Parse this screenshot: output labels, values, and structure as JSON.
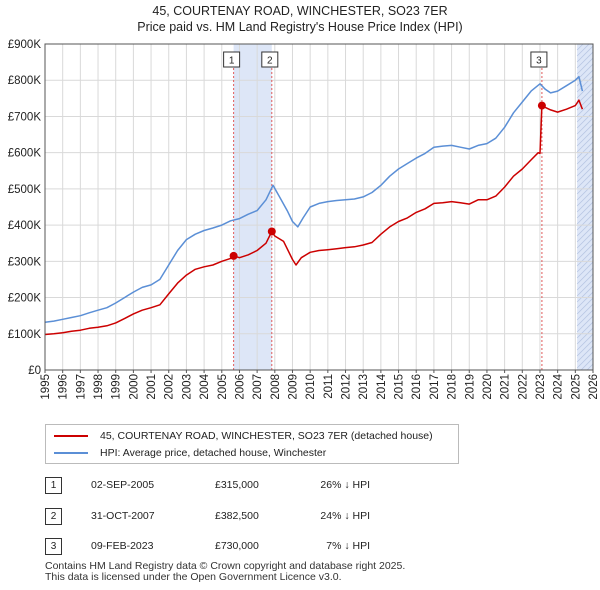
{
  "title": {
    "line1": "45, COURTENAY ROAD, WINCHESTER, SO23 7ER",
    "line2": "Price paid vs. HM Land Registry's House Price Index (HPI)"
  },
  "colors": {
    "property": "#cc0000",
    "hpi": "#5b8fd6",
    "shade": "#dde6f7",
    "marker_line": "#e05a5a",
    "grid": "#d9d9d9"
  },
  "chart_data": {
    "type": "line",
    "title": "Price paid vs. HM Land Registry's House Price Index (HPI)",
    "xlabel": "",
    "ylabel": "",
    "xlim": [
      1995,
      2026
    ],
    "ylim": [
      0,
      900000
    ],
    "x_ticks": [
      "1995",
      "1996",
      "1997",
      "1998",
      "1999",
      "2000",
      "2001",
      "2002",
      "2003",
      "2004",
      "2005",
      "2006",
      "2007",
      "2008",
      "2009",
      "2010",
      "2011",
      "2012",
      "2013",
      "2014",
      "2015",
      "2016",
      "2017",
      "2018",
      "2019",
      "2020",
      "2021",
      "2022",
      "2023",
      "2024",
      "2025",
      "2026"
    ],
    "y_ticks": [
      {
        "value": 0,
        "label": "£0"
      },
      {
        "value": 100000,
        "label": "£100K"
      },
      {
        "value": 200000,
        "label": "£200K"
      },
      {
        "value": 300000,
        "label": "£300K"
      },
      {
        "value": 400000,
        "label": "£400K"
      },
      {
        "value": 500000,
        "label": "£500K"
      },
      {
        "value": 600000,
        "label": "£600K"
      },
      {
        "value": 700000,
        "label": "£700K"
      },
      {
        "value": 800000,
        "label": "£800K"
      },
      {
        "value": 900000,
        "label": "£900K"
      }
    ],
    "shaded_spans": [
      [
        2005.67,
        2007.83
      ],
      [
        2025.1,
        2026
      ]
    ],
    "series": [
      {
        "name": "45, COURTENAY ROAD, WINCHESTER, SO23 7ER (detached house)",
        "color": "#cc0000",
        "x": [
          1995.0,
          1995.5,
          1996.0,
          1996.5,
          1997.0,
          1997.5,
          1998.0,
          1998.5,
          1999.0,
          1999.5,
          2000.0,
          2000.5,
          2001.0,
          2001.5,
          2002.0,
          2002.5,
          2003.0,
          2003.5,
          2004.0,
          2004.5,
          2005.0,
          2005.5,
          2005.67,
          2006.0,
          2006.5,
          2007.0,
          2007.5,
          2007.83,
          2008.0,
          2008.5,
          2009.0,
          2009.2,
          2009.5,
          2010.0,
          2010.5,
          2011.0,
          2011.5,
          2012.0,
          2012.5,
          2013.0,
          2013.5,
          2014.0,
          2014.5,
          2015.0,
          2015.5,
          2016.0,
          2016.5,
          2017.0,
          2017.5,
          2018.0,
          2018.5,
          2019.0,
          2019.5,
          2020.0,
          2020.5,
          2021.0,
          2021.5,
          2022.0,
          2022.5,
          2022.9,
          2023.0,
          2023.11,
          2023.3,
          2023.6,
          2024.0,
          2024.5,
          2025.0,
          2025.2,
          2025.4
        ],
        "values": [
          98000,
          100000,
          103000,
          107000,
          110000,
          115000,
          118000,
          122000,
          130000,
          142000,
          155000,
          165000,
          172000,
          180000,
          210000,
          240000,
          262000,
          278000,
          285000,
          290000,
          300000,
          308000,
          315000,
          310000,
          318000,
          330000,
          350000,
          382500,
          370000,
          355000,
          305000,
          290000,
          310000,
          325000,
          330000,
          332000,
          335000,
          338000,
          340000,
          345000,
          352000,
          375000,
          395000,
          410000,
          420000,
          435000,
          445000,
          460000,
          462000,
          465000,
          462000,
          458000,
          470000,
          470000,
          480000,
          505000,
          535000,
          555000,
          580000,
          600000,
          598000,
          730000,
          725000,
          718000,
          712000,
          720000,
          730000,
          745000,
          720000
        ]
      },
      {
        "name": "HPI: Average price, detached house, Winchester",
        "color": "#5b8fd6",
        "x": [
          1995.0,
          1995.5,
          1996.0,
          1996.5,
          1997.0,
          1997.5,
          1998.0,
          1998.5,
          1999.0,
          1999.5,
          2000.0,
          2000.5,
          2001.0,
          2001.5,
          2002.0,
          2002.5,
          2003.0,
          2003.5,
          2004.0,
          2004.5,
          2005.0,
          2005.5,
          2006.0,
          2006.5,
          2007.0,
          2007.5,
          2007.9,
          2008.3,
          2008.7,
          2009.0,
          2009.3,
          2009.6,
          2010.0,
          2010.5,
          2011.0,
          2011.5,
          2012.0,
          2012.5,
          2013.0,
          2013.5,
          2014.0,
          2014.5,
          2015.0,
          2015.5,
          2016.0,
          2016.5,
          2017.0,
          2017.5,
          2018.0,
          2018.5,
          2019.0,
          2019.5,
          2020.0,
          2020.5,
          2021.0,
          2021.5,
          2022.0,
          2022.5,
          2023.0,
          2023.3,
          2023.6,
          2024.0,
          2024.5,
          2025.0,
          2025.2,
          2025.4
        ],
        "values": [
          132000,
          135000,
          140000,
          145000,
          150000,
          158000,
          165000,
          172000,
          185000,
          200000,
          215000,
          228000,
          235000,
          250000,
          290000,
          330000,
          360000,
          375000,
          385000,
          392000,
          400000,
          412000,
          418000,
          430000,
          440000,
          470000,
          510000,
          475000,
          440000,
          410000,
          395000,
          420000,
          450000,
          460000,
          465000,
          468000,
          470000,
          472000,
          478000,
          490000,
          510000,
          535000,
          555000,
          570000,
          585000,
          598000,
          615000,
          618000,
          620000,
          615000,
          610000,
          620000,
          625000,
          640000,
          670000,
          710000,
          740000,
          770000,
          790000,
          775000,
          765000,
          770000,
          785000,
          800000,
          810000,
          770000
        ]
      }
    ],
    "sales": [
      {
        "label": "1",
        "date": "02-SEP-2005",
        "x": 2005.67,
        "price": "£315,000",
        "value": 315000,
        "hpi": "26% ↓ HPI"
      },
      {
        "label": "2",
        "date": "31-OCT-2007",
        "x": 2007.83,
        "price": "£382,500",
        "value": 382500,
        "hpi": "24% ↓ HPI"
      },
      {
        "label": "3",
        "date": "09-FEB-2023",
        "x": 2023.11,
        "price": "£730,000",
        "value": 730000,
        "hpi": "7% ↓ HPI"
      }
    ]
  },
  "legend": {
    "property": "45, COURTENAY ROAD, WINCHESTER, SO23 7ER (detached house)",
    "hpi": "HPI: Average price, detached house, Winchester"
  },
  "table": [
    {
      "num": "1",
      "date": "02-SEP-2005",
      "price": "£315,000",
      "hpi": "26% ↓ HPI"
    },
    {
      "num": "2",
      "date": "31-OCT-2007",
      "price": "£382,500",
      "hpi": "24% ↓ HPI"
    },
    {
      "num": "3",
      "date": "09-FEB-2023",
      "price": "£730,000",
      "hpi": "7% ↓ HPI"
    }
  ],
  "footer": {
    "line1": "Contains HM Land Registry data © Crown copyright and database right 2025.",
    "line2": "This data is licensed under the Open Government Licence v3.0."
  }
}
